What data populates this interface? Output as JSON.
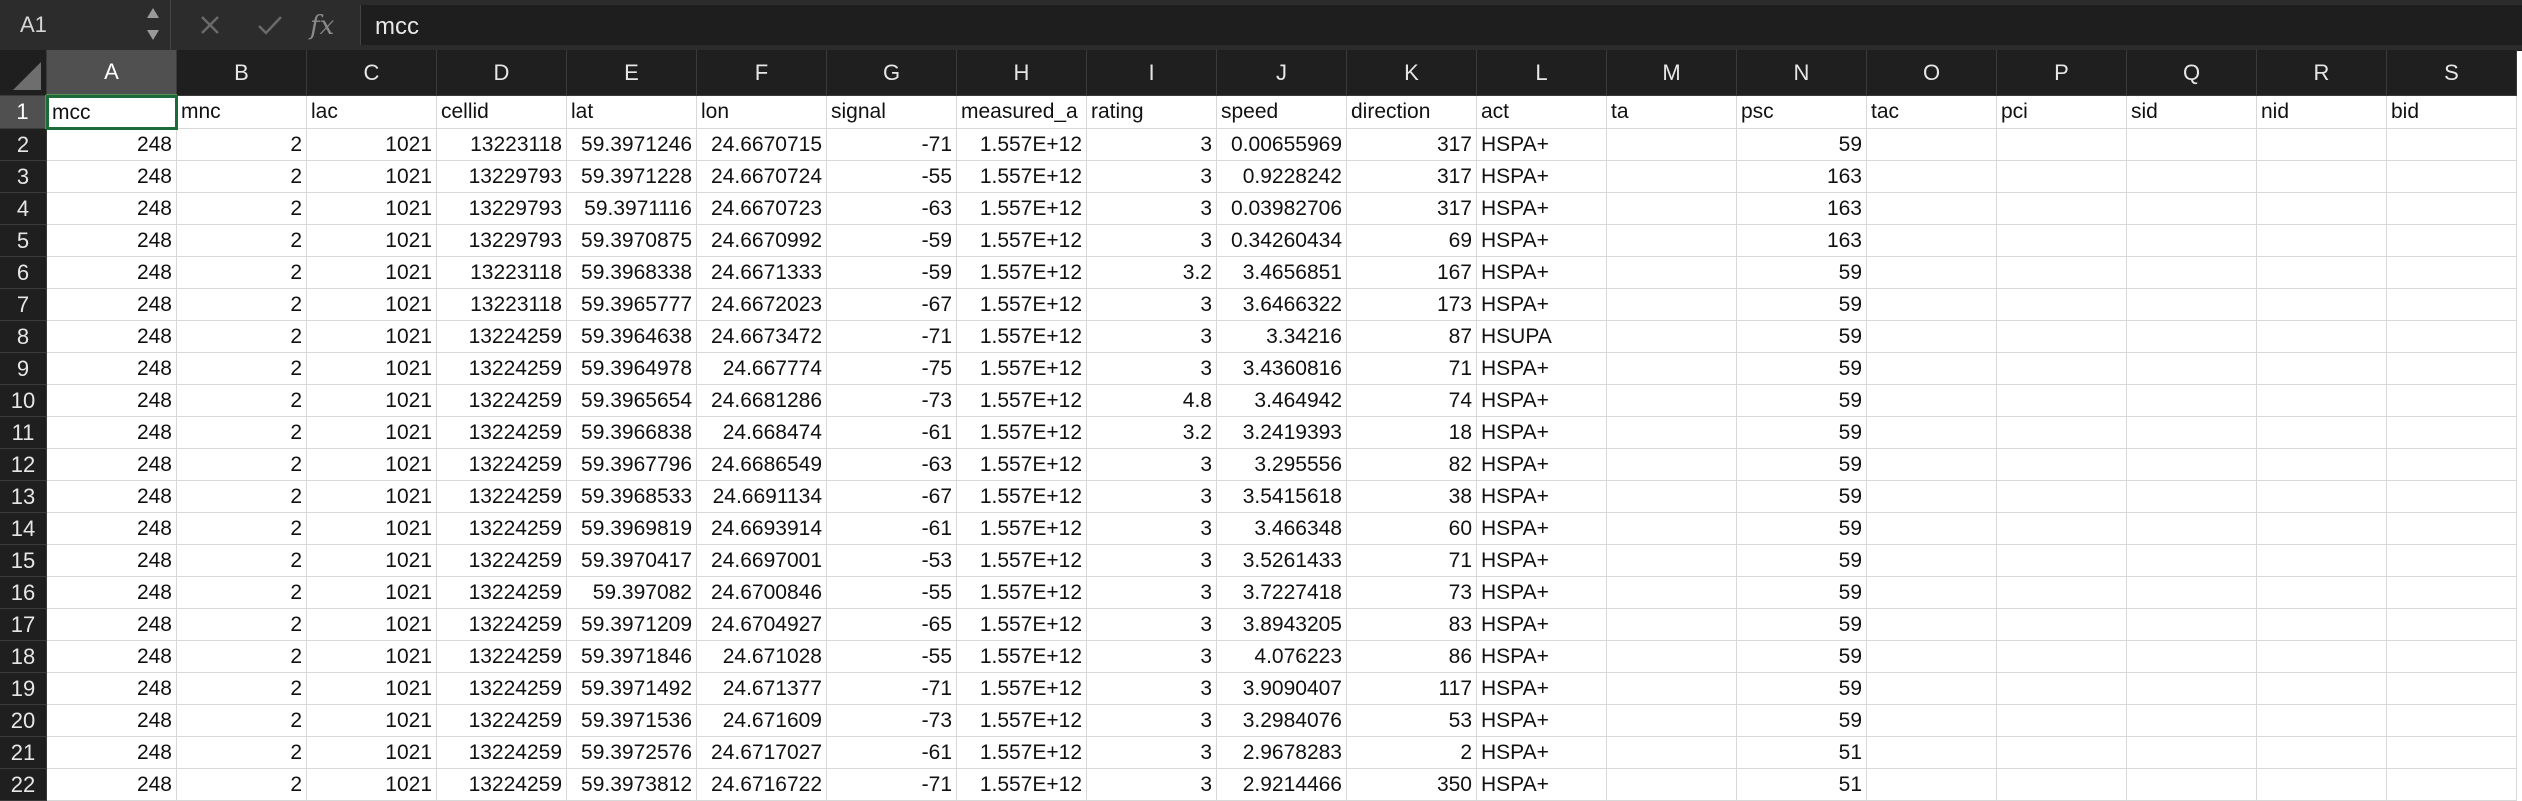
{
  "namebox": {
    "value": "A1"
  },
  "formula": {
    "value": "mcc"
  },
  "columns": [
    "A",
    "B",
    "C",
    "D",
    "E",
    "F",
    "G",
    "H",
    "I",
    "J",
    "K",
    "L",
    "M",
    "N",
    "O",
    "P",
    "Q",
    "R",
    "S"
  ],
  "selected_column": "A",
  "selected_row": "1",
  "rows": [
    {
      "n": "1",
      "c": [
        "mcc",
        "mnc",
        "lac",
        "cellid",
        "lat",
        "lon",
        "signal",
        "measured_a",
        "rating",
        "speed",
        "direction",
        "act",
        "ta",
        "psc",
        "tac",
        "pci",
        "sid",
        "nid",
        "bid"
      ]
    },
    {
      "n": "2",
      "c": [
        "248",
        "2",
        "1021",
        "13223118",
        "59.3971246",
        "24.6670715",
        "-71",
        "1.557E+12",
        "3",
        "0.00655969",
        "317",
        "HSPA+",
        "",
        "59",
        "",
        "",
        "",
        "",
        ""
      ]
    },
    {
      "n": "3",
      "c": [
        "248",
        "2",
        "1021",
        "13229793",
        "59.3971228",
        "24.6670724",
        "-55",
        "1.557E+12",
        "3",
        "0.9228242",
        "317",
        "HSPA+",
        "",
        "163",
        "",
        "",
        "",
        "",
        ""
      ]
    },
    {
      "n": "4",
      "c": [
        "248",
        "2",
        "1021",
        "13229793",
        "59.3971116",
        "24.6670723",
        "-63",
        "1.557E+12",
        "3",
        "0.03982706",
        "317",
        "HSPA+",
        "",
        "163",
        "",
        "",
        "",
        "",
        ""
      ]
    },
    {
      "n": "5",
      "c": [
        "248",
        "2",
        "1021",
        "13229793",
        "59.3970875",
        "24.6670992",
        "-59",
        "1.557E+12",
        "3",
        "0.34260434",
        "69",
        "HSPA+",
        "",
        "163",
        "",
        "",
        "",
        "",
        ""
      ]
    },
    {
      "n": "6",
      "c": [
        "248",
        "2",
        "1021",
        "13223118",
        "59.3968338",
        "24.6671333",
        "-59",
        "1.557E+12",
        "3.2",
        "3.4656851",
        "167",
        "HSPA+",
        "",
        "59",
        "",
        "",
        "",
        "",
        ""
      ]
    },
    {
      "n": "7",
      "c": [
        "248",
        "2",
        "1021",
        "13223118",
        "59.3965777",
        "24.6672023",
        "-67",
        "1.557E+12",
        "3",
        "3.6466322",
        "173",
        "HSPA+",
        "",
        "59",
        "",
        "",
        "",
        "",
        ""
      ]
    },
    {
      "n": "8",
      "c": [
        "248",
        "2",
        "1021",
        "13224259",
        "59.3964638",
        "24.6673472",
        "-71",
        "1.557E+12",
        "3",
        "3.34216",
        "87",
        "HSUPA",
        "",
        "59",
        "",
        "",
        "",
        "",
        ""
      ]
    },
    {
      "n": "9",
      "c": [
        "248",
        "2",
        "1021",
        "13224259",
        "59.3964978",
        "24.667774",
        "-75",
        "1.557E+12",
        "3",
        "3.4360816",
        "71",
        "HSPA+",
        "",
        "59",
        "",
        "",
        "",
        "",
        ""
      ]
    },
    {
      "n": "10",
      "c": [
        "248",
        "2",
        "1021",
        "13224259",
        "59.3965654",
        "24.6681286",
        "-73",
        "1.557E+12",
        "4.8",
        "3.464942",
        "74",
        "HSPA+",
        "",
        "59",
        "",
        "",
        "",
        "",
        ""
      ]
    },
    {
      "n": "11",
      "c": [
        "248",
        "2",
        "1021",
        "13224259",
        "59.3966838",
        "24.668474",
        "-61",
        "1.557E+12",
        "3.2",
        "3.2419393",
        "18",
        "HSPA+",
        "",
        "59",
        "",
        "",
        "",
        "",
        ""
      ]
    },
    {
      "n": "12",
      "c": [
        "248",
        "2",
        "1021",
        "13224259",
        "59.3967796",
        "24.6686549",
        "-63",
        "1.557E+12",
        "3",
        "3.295556",
        "82",
        "HSPA+",
        "",
        "59",
        "",
        "",
        "",
        "",
        ""
      ]
    },
    {
      "n": "13",
      "c": [
        "248",
        "2",
        "1021",
        "13224259",
        "59.3968533",
        "24.6691134",
        "-67",
        "1.557E+12",
        "3",
        "3.5415618",
        "38",
        "HSPA+",
        "",
        "59",
        "",
        "",
        "",
        "",
        ""
      ]
    },
    {
      "n": "14",
      "c": [
        "248",
        "2",
        "1021",
        "13224259",
        "59.3969819",
        "24.6693914",
        "-61",
        "1.557E+12",
        "3",
        "3.466348",
        "60",
        "HSPA+",
        "",
        "59",
        "",
        "",
        "",
        "",
        ""
      ]
    },
    {
      "n": "15",
      "c": [
        "248",
        "2",
        "1021",
        "13224259",
        "59.3970417",
        "24.6697001",
        "-53",
        "1.557E+12",
        "3",
        "3.5261433",
        "71",
        "HSPA+",
        "",
        "59",
        "",
        "",
        "",
        "",
        ""
      ]
    },
    {
      "n": "16",
      "c": [
        "248",
        "2",
        "1021",
        "13224259",
        "59.397082",
        "24.6700846",
        "-55",
        "1.557E+12",
        "3",
        "3.7227418",
        "73",
        "HSPA+",
        "",
        "59",
        "",
        "",
        "",
        "",
        ""
      ]
    },
    {
      "n": "17",
      "c": [
        "248",
        "2",
        "1021",
        "13224259",
        "59.3971209",
        "24.6704927",
        "-65",
        "1.557E+12",
        "3",
        "3.8943205",
        "83",
        "HSPA+",
        "",
        "59",
        "",
        "",
        "",
        "",
        ""
      ]
    },
    {
      "n": "18",
      "c": [
        "248",
        "2",
        "1021",
        "13224259",
        "59.3971846",
        "24.671028",
        "-55",
        "1.557E+12",
        "3",
        "4.076223",
        "86",
        "HSPA+",
        "",
        "59",
        "",
        "",
        "",
        "",
        ""
      ]
    },
    {
      "n": "19",
      "c": [
        "248",
        "2",
        "1021",
        "13224259",
        "59.3971492",
        "24.671377",
        "-71",
        "1.557E+12",
        "3",
        "3.9090407",
        "117",
        "HSPA+",
        "",
        "59",
        "",
        "",
        "",
        "",
        ""
      ]
    },
    {
      "n": "20",
      "c": [
        "248",
        "2",
        "1021",
        "13224259",
        "59.3971536",
        "24.671609",
        "-73",
        "1.557E+12",
        "3",
        "3.2984076",
        "53",
        "HSPA+",
        "",
        "59",
        "",
        "",
        "",
        "",
        ""
      ]
    },
    {
      "n": "21",
      "c": [
        "248",
        "2",
        "1021",
        "13224259",
        "59.3972576",
        "24.6717027",
        "-61",
        "1.557E+12",
        "3",
        "2.9678283",
        "2",
        "HSPA+",
        "",
        "51",
        "",
        "",
        "",
        "",
        ""
      ]
    },
    {
      "n": "22",
      "c": [
        "248",
        "2",
        "1021",
        "13224259",
        "59.3973812",
        "24.6716722",
        "-71",
        "1.557E+12",
        "3",
        "2.9214466",
        "350",
        "HSPA+",
        "",
        "51",
        "",
        "",
        "",
        "",
        ""
      ]
    }
  ]
}
